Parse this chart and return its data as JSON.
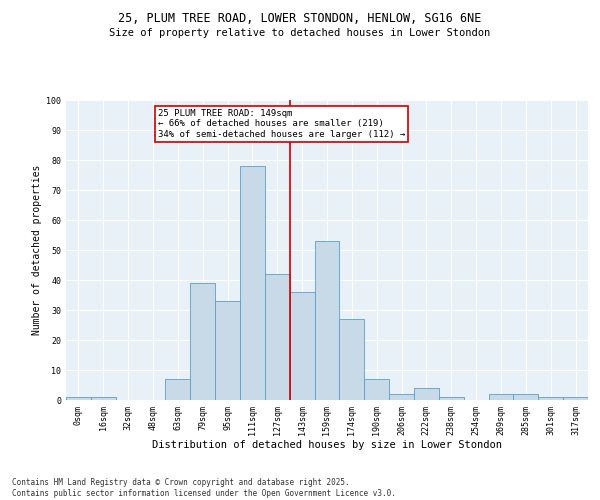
{
  "title_line1": "25, PLUM TREE ROAD, LOWER STONDON, HENLOW, SG16 6NE",
  "title_line2": "Size of property relative to detached houses in Lower Stondon",
  "xlabel": "Distribution of detached houses by size in Lower Stondon",
  "ylabel": "Number of detached properties",
  "bin_labels": [
    "0sqm",
    "16sqm",
    "32sqm",
    "48sqm",
    "63sqm",
    "79sqm",
    "95sqm",
    "111sqm",
    "127sqm",
    "143sqm",
    "159sqm",
    "174sqm",
    "190sqm",
    "206sqm",
    "222sqm",
    "238sqm",
    "254sqm",
    "269sqm",
    "285sqm",
    "301sqm",
    "317sqm"
  ],
  "bar_values": [
    1,
    1,
    0,
    0,
    7,
    39,
    33,
    78,
    42,
    36,
    53,
    27,
    7,
    2,
    4,
    1,
    0,
    2,
    2,
    1,
    1
  ],
  "bar_color": "#c8d9e8",
  "bar_edge_color": "#5a9ec9",
  "vline_x": 8.5,
  "vline_color": "#cc0000",
  "annotation_text": "25 PLUM TREE ROAD: 149sqm\n← 66% of detached houses are smaller (219)\n34% of semi-detached houses are larger (112) →",
  "annotation_box_color": "#cc0000",
  "annotation_text_color": "#000000",
  "ylim": [
    0,
    100
  ],
  "yticks": [
    0,
    10,
    20,
    30,
    40,
    50,
    60,
    70,
    80,
    90,
    100
  ],
  "bg_color": "#e8f0f8",
  "grid_color": "#ffffff",
  "footer_text": "Contains HM Land Registry data © Crown copyright and database right 2025.\nContains public sector information licensed under the Open Government Licence v3.0.",
  "title_fontsize": 8.5,
  "subtitle_fontsize": 7.5,
  "axis_label_fontsize": 7,
  "tick_fontsize": 6,
  "annotation_fontsize": 6.5,
  "footer_fontsize": 5.5
}
